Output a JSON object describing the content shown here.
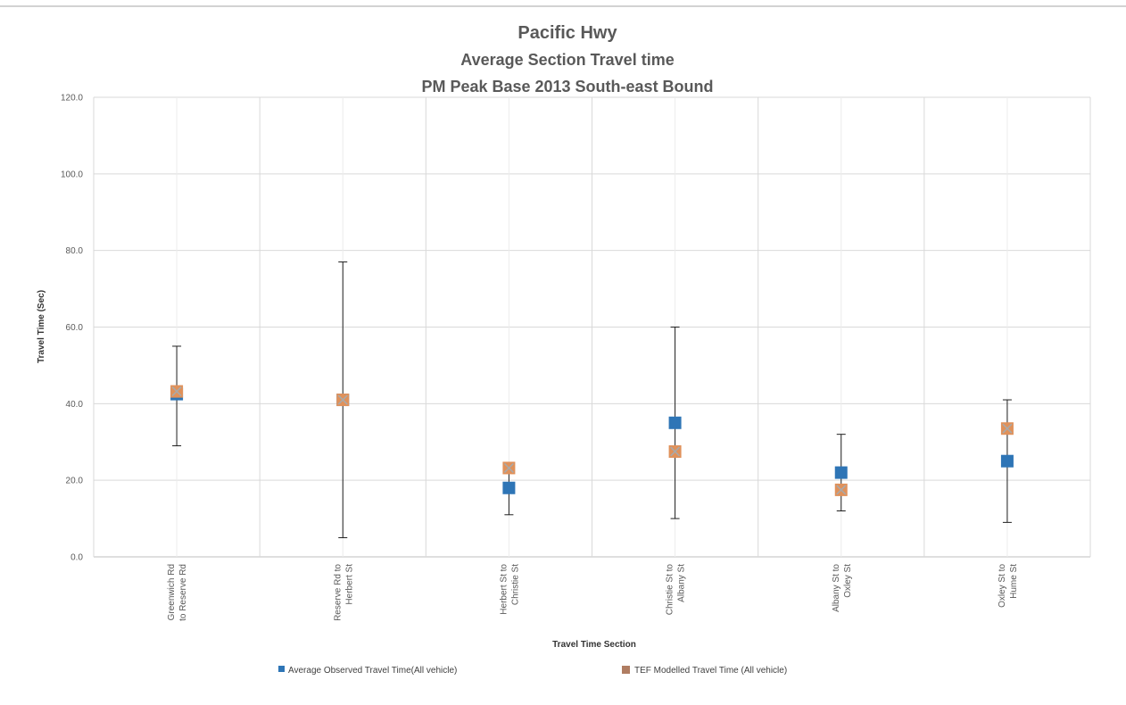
{
  "chart_data": {
    "type": "scatter",
    "title": "Pacific Hwy",
    "subtitle_1": "Average Section Travel time",
    "subtitle_2": "PM Peak Base 2013 South-east Bound",
    "xlabel": "Travel Time Section",
    "ylabel": "Travel Time  (Sec)",
    "ylim": [
      0,
      120
    ],
    "yticks": [
      "0.0",
      "20.0",
      "40.0",
      "60.0",
      "80.0",
      "100.0",
      "120.0"
    ],
    "grid": true,
    "legend_position": "bottom",
    "categories": [
      [
        "Greenwich Rd",
        "to Reserve Rd"
      ],
      [
        "Reserve Rd to",
        "Herbert St"
      ],
      [
        "Herbert St to",
        "Christie St"
      ],
      [
        "Christie St to",
        "Albany St"
      ],
      [
        "Albany St to",
        "Oxley St"
      ],
      [
        "Oxley St to",
        "Hume St"
      ]
    ],
    "error_bars": [
      {
        "low": 29,
        "high": 55
      },
      {
        "low": 5,
        "high": 77
      },
      {
        "low": 11,
        "high": 24
      },
      {
        "low": 10,
        "high": 60
      },
      {
        "low": 12,
        "high": 32
      },
      {
        "low": 9,
        "high": 41
      }
    ],
    "series": [
      {
        "name": "Average Observed Travel Time(All vehicle)",
        "color": "#2e75b6",
        "marker": "square",
        "values": [
          42.5,
          41,
          18,
          35,
          22,
          25
        ]
      },
      {
        "name": "TEF Modelled Travel Time (All vehicle)",
        "color": "#e0915a",
        "marker": "square-x",
        "values": [
          43.2,
          41,
          23.2,
          27.5,
          17.5,
          33.5
        ]
      }
    ]
  }
}
